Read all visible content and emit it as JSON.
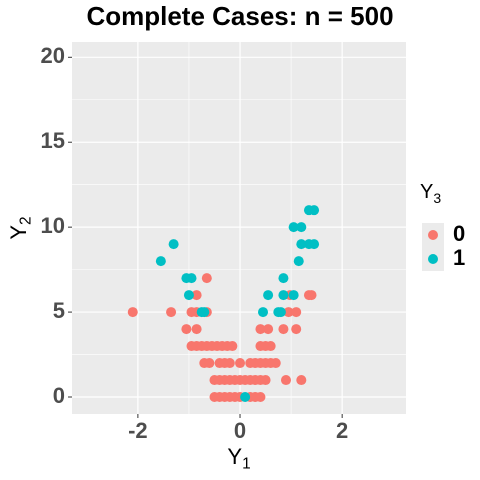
{
  "chart_data": {
    "type": "scatter",
    "title": "Complete Cases: n = 500",
    "xlabel": {
      "main": "Y",
      "sub": "1"
    },
    "ylabel": {
      "main": "Y",
      "sub": "2"
    },
    "legend_title": {
      "main": "Y",
      "sub": "3"
    },
    "legend_position": "right",
    "grid": true,
    "xlim": [
      -3.29,
      3.25
    ],
    "ylim": [
      -1,
      20.9
    ],
    "xticks": [
      -2,
      0,
      2
    ],
    "yticks": [
      0,
      5,
      10,
      15,
      20
    ],
    "series": [
      {
        "name": "0",
        "color": "#F8766D",
        "x": [
          -2.1,
          -1.35,
          -0.95,
          -0.85,
          -0.65,
          0.95,
          1.1,
          -0.65,
          -0.85,
          0.98,
          1.35,
          1.4,
          -1.05,
          -0.85,
          0.4,
          0.55,
          0.85,
          1.1,
          -0.95,
          -0.85,
          -0.75,
          -0.65,
          -0.55,
          -0.45,
          -0.35,
          -0.25,
          -0.15,
          0.4,
          0.5,
          0.6,
          -0.7,
          -0.6,
          -0.4,
          -0.3,
          -0.2,
          0.0,
          0.2,
          0.3,
          0.4,
          0.5,
          0.6,
          0.7,
          -0.5,
          -0.4,
          -0.3,
          -0.2,
          -0.1,
          0.0,
          0.1,
          0.2,
          0.3,
          0.4,
          0.5,
          0.9,
          1.2,
          -0.5,
          -0.4,
          -0.3,
          -0.2,
          -0.1,
          0.0,
          0.2,
          0.3,
          0.4
        ],
        "values": [
          5,
          5,
          5,
          5,
          5,
          5,
          5,
          7,
          6,
          6,
          6,
          6,
          4,
          4,
          4,
          4,
          4,
          4,
          3,
          3,
          3,
          3,
          3,
          3,
          3,
          3,
          3,
          3,
          3,
          3,
          2,
          2,
          2,
          2,
          2,
          2,
          2,
          2,
          2,
          2,
          2,
          2,
          1,
          1,
          1,
          1,
          1,
          1,
          1,
          1,
          1,
          1,
          1,
          1,
          1,
          0,
          0,
          0,
          0,
          0,
          0,
          0,
          0,
          0
        ]
      },
      {
        "name": "1",
        "color": "#00BFC4",
        "x": [
          -1.55,
          -1.3,
          -1.05,
          -0.95,
          -1.0,
          -0.75,
          -0.7,
          0.45,
          0.75,
          0.8,
          1.05,
          0.85,
          0.55,
          0.85,
          1.15,
          1.05,
          1.2,
          1.2,
          1.35,
          1.45,
          1.35,
          1.45,
          0.1
        ],
        "values": [
          8,
          9,
          7,
          7,
          6,
          5,
          5,
          5,
          5,
          5,
          6,
          6,
          6,
          7,
          8,
          10,
          10,
          9,
          9,
          9,
          11,
          11,
          0
        ]
      }
    ]
  }
}
